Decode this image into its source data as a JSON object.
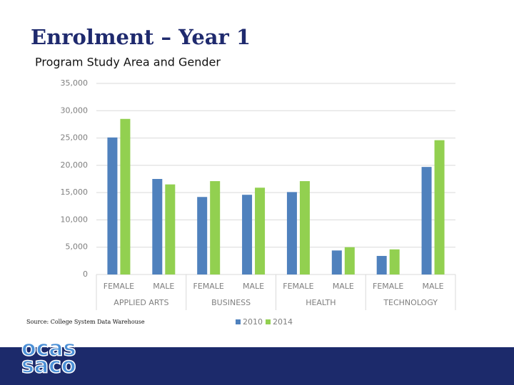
{
  "title": "Enrolment – Year 1",
  "subtitle": "Program Study Area and Gender",
  "source": "Source: College System Data Warehouse",
  "logo": [
    "ocas",
    "saco"
  ],
  "chart_data": {
    "type": "bar",
    "categories": [
      "FEMALE",
      "MALE",
      "FEMALE",
      "MALE",
      "FEMALE",
      "MALE",
      "FEMALE",
      "MALE"
    ],
    "category_groups": [
      "APPLIED ARTS",
      "BUSINESS",
      "HEALTH",
      "TECHNOLOGY"
    ],
    "series": [
      {
        "name": "2010",
        "color": "#4f81bd",
        "values": [
          25100,
          17500,
          14200,
          14600,
          15100,
          4400,
          3400,
          19700
        ]
      },
      {
        "name": "2014",
        "color": "#92d050",
        "values": [
          28500,
          16500,
          17100,
          15900,
          17100,
          5000,
          4600,
          24600
        ]
      }
    ],
    "ylim": [
      0,
      35000
    ],
    "yticks": [
      0,
      {
        "value": 5000,
        "label": "5,000"
      },
      {
        "value": 10000,
        "label": "10,000"
      },
      {
        "value": 15000,
        "label": "15,000"
      },
      {
        "value": 20000,
        "label": "20,000"
      },
      {
        "value": 25000,
        "label": "25,000"
      },
      {
        "value": 30000,
        "label": "30,000"
      },
      {
        "value": 35000,
        "label": "35,000"
      }
    ],
    "grid": true,
    "legend": "bottom"
  }
}
